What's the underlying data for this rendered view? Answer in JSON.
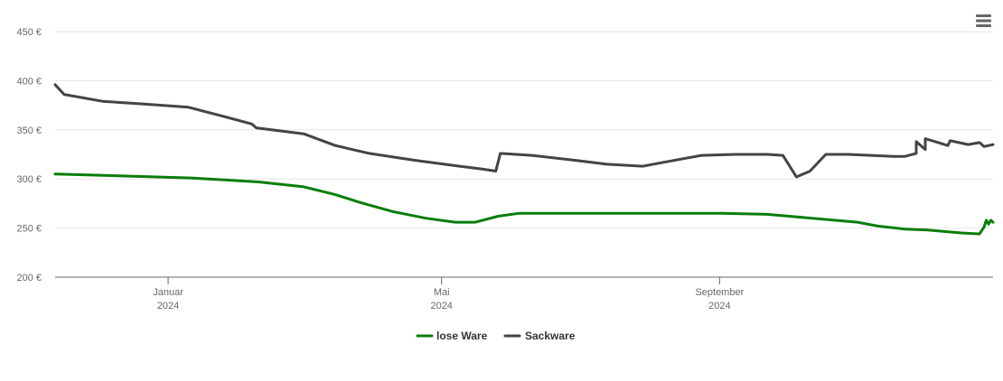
{
  "chart_data": {
    "type": "line",
    "title": "",
    "xlabel": "",
    "ylabel": "",
    "ylim": [
      200,
      450
    ],
    "yticks": [
      200,
      250,
      300,
      350,
      400,
      450
    ],
    "ytick_labels": [
      "200 €",
      "250 €",
      "300 €",
      "350 €",
      "400 €",
      "450 €"
    ],
    "xlim": [
      "2023-11-12",
      "2024-12-31"
    ],
    "xticks": [
      {
        "date": "2024-01-01",
        "month": "Januar",
        "year": "2024"
      },
      {
        "date": "2024-05-01",
        "month": "Mai",
        "year": "2024"
      },
      {
        "date": "2024-09-01",
        "month": "September",
        "year": "2024"
      }
    ],
    "grid": true,
    "legend": "bottom-center",
    "series": [
      {
        "name": "lose Ware",
        "color": "#0a7d0a",
        "points": [
          [
            "2023-11-12",
            305
          ],
          [
            "2023-12-12",
            303
          ],
          [
            "2024-01-11",
            301
          ],
          [
            "2024-02-10",
            297
          ],
          [
            "2024-03-01",
            292
          ],
          [
            "2024-03-15",
            284
          ],
          [
            "2024-03-26",
            276
          ],
          [
            "2024-04-09",
            267
          ],
          [
            "2024-04-24",
            260
          ],
          [
            "2024-05-07",
            256
          ],
          [
            "2024-05-16",
            256
          ],
          [
            "2024-05-26",
            262
          ],
          [
            "2024-06-04",
            265
          ],
          [
            "2024-07-24",
            265
          ],
          [
            "2024-09-02",
            265
          ],
          [
            "2024-09-22",
            264
          ],
          [
            "2024-10-12",
            260
          ],
          [
            "2024-11-01",
            256
          ],
          [
            "2024-11-10",
            252
          ],
          [
            "2024-11-22",
            249
          ],
          [
            "2024-12-02",
            248
          ],
          [
            "2024-12-17",
            245
          ],
          [
            "2024-12-25",
            244
          ],
          [
            "2024-12-27",
            251
          ],
          [
            "2024-12-28",
            258
          ],
          [
            "2024-12-29",
            254
          ],
          [
            "2024-12-30",
            258
          ],
          [
            "2024-12-31",
            256
          ]
        ]
      },
      {
        "name": "Sackware",
        "color": "#434348",
        "points": [
          [
            "2023-11-12",
            396
          ],
          [
            "2023-11-16",
            386
          ],
          [
            "2023-12-03",
            379
          ],
          [
            "2023-12-23",
            376
          ],
          [
            "2024-01-10",
            373
          ],
          [
            "2024-01-25",
            364
          ],
          [
            "2024-02-07",
            356
          ],
          [
            "2024-02-09",
            352
          ],
          [
            "2024-03-01",
            346
          ],
          [
            "2024-03-15",
            334
          ],
          [
            "2024-03-30",
            326
          ],
          [
            "2024-04-19",
            319
          ],
          [
            "2024-05-09",
            313
          ],
          [
            "2024-05-19",
            310
          ],
          [
            "2024-05-25",
            308
          ],
          [
            "2024-05-27",
            326
          ],
          [
            "2024-06-10",
            324
          ],
          [
            "2024-06-29",
            319
          ],
          [
            "2024-07-13",
            315
          ],
          [
            "2024-07-29",
            313
          ],
          [
            "2024-08-05",
            316
          ],
          [
            "2024-08-24",
            324
          ],
          [
            "2024-09-08",
            325
          ],
          [
            "2024-09-22",
            325
          ],
          [
            "2024-09-29",
            324
          ],
          [
            "2024-10-05",
            302
          ],
          [
            "2024-10-11",
            308
          ],
          [
            "2024-10-18",
            325
          ],
          [
            "2024-10-28",
            325
          ],
          [
            "2024-11-07",
            324
          ],
          [
            "2024-11-17",
            323
          ],
          [
            "2024-11-22",
            323
          ],
          [
            "2024-11-27",
            326
          ],
          [
            "2024-12-01",
            330
          ],
          [
            "2024-12-11",
            334
          ],
          [
            "2024-12-25",
            337
          ],
          [
            "2024-11-27",
            338
          ],
          [
            "2024-12-01",
            341
          ],
          [
            "2024-12-12",
            339
          ],
          [
            "2024-12-14",
            338
          ],
          [
            "2024-12-20",
            335
          ],
          [
            "2024-12-27",
            333
          ],
          [
            "2024-12-29",
            334
          ],
          [
            "2024-12-31",
            335
          ]
        ]
      }
    ]
  },
  "menu": {
    "icon": "hamburger-menu-icon"
  }
}
